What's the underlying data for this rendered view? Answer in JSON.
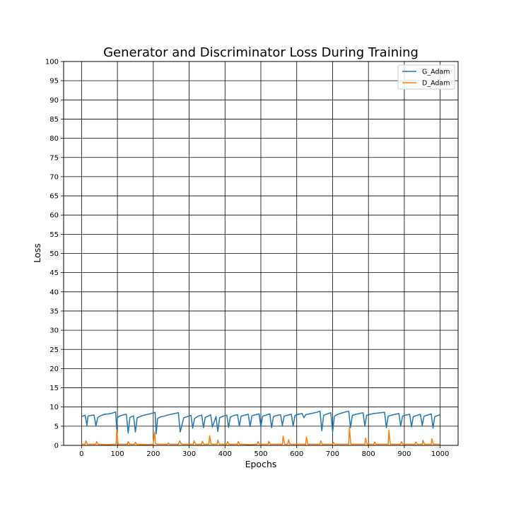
{
  "chart_data": {
    "type": "line",
    "title": "Generator and Discriminator Loss During Training",
    "xlabel": "Epochs",
    "ylabel": "Loss",
    "xlim": [
      -50,
      1050
    ],
    "ylim": [
      0,
      100
    ],
    "xticks": [
      0,
      100,
      200,
      300,
      400,
      500,
      600,
      700,
      800,
      900,
      1000
    ],
    "yticks": [
      0,
      5,
      10,
      15,
      20,
      25,
      30,
      35,
      40,
      45,
      50,
      55,
      60,
      65,
      70,
      75,
      80,
      85,
      90,
      95,
      100
    ],
    "grid": true,
    "legend_position": "top-right",
    "series": [
      {
        "name": "G_Adam",
        "color": "#1f77b4",
        "x": [
          0,
          10,
          15,
          18,
          25,
          35,
          40,
          45,
          55,
          65,
          75,
          85,
          95,
          98,
          100,
          105,
          115,
          125,
          130,
          135,
          145,
          150,
          155,
          165,
          175,
          185,
          195,
          205,
          208,
          212,
          220,
          230,
          240,
          250,
          260,
          270,
          275,
          285,
          295,
          305,
          310,
          315,
          325,
          335,
          340,
          345,
          355,
          360,
          365,
          375,
          380,
          385,
          395,
          405,
          410,
          415,
          425,
          435,
          440,
          445,
          455,
          465,
          470,
          475,
          485,
          495,
          500,
          505,
          515,
          525,
          530,
          535,
          545,
          555,
          560,
          565,
          575,
          585,
          590,
          595,
          605,
          615,
          620,
          625,
          635,
          645,
          655,
          665,
          670,
          675,
          685,
          695,
          700,
          705,
          715,
          725,
          735,
          745,
          750,
          755,
          765,
          775,
          785,
          790,
          795,
          805,
          815,
          825,
          835,
          845,
          850,
          855,
          865,
          875,
          885,
          890,
          895,
          905,
          915,
          920,
          925,
          935,
          945,
          950,
          955,
          965,
          975,
          980,
          985,
          995,
          1000
        ],
        "y": [
          7.5,
          7.9,
          5.2,
          7.6,
          7.8,
          7.9,
          5.0,
          7.3,
          7.8,
          8.1,
          8.2,
          8.4,
          8.7,
          4.2,
          7.2,
          7.6,
          7.9,
          8.1,
          3.2,
          7.3,
          7.7,
          3.5,
          7.2,
          7.6,
          7.9,
          8.1,
          8.3,
          8.6,
          3.0,
          7.0,
          7.4,
          7.6,
          7.9,
          8.1,
          8.3,
          8.5,
          3.5,
          7.2,
          7.5,
          7.8,
          4.5,
          7.0,
          7.6,
          7.9,
          4.6,
          7.3,
          7.7,
          8.0,
          4.8,
          7.5,
          3.6,
          7.2,
          7.6,
          7.9,
          4.7,
          7.4,
          7.8,
          8.0,
          5.0,
          7.6,
          7.9,
          8.1,
          4.9,
          7.7,
          8.0,
          8.2,
          4.8,
          7.6,
          7.9,
          8.2,
          4.6,
          7.5,
          7.8,
          8.0,
          5.2,
          7.6,
          7.9,
          8.1,
          5.0,
          7.8,
          8.1,
          8.3,
          7.2,
          8.0,
          8.2,
          8.4,
          8.6,
          8.9,
          3.8,
          7.8,
          8.2,
          8.5,
          3.5,
          7.6,
          8.1,
          8.4,
          8.7,
          8.9,
          4.6,
          7.8,
          8.1,
          8.3,
          8.5,
          5.0,
          7.8,
          8.1,
          8.3,
          8.4,
          8.5,
          8.6,
          4.6,
          7.6,
          7.9,
          8.1,
          8.3,
          5.0,
          7.6,
          7.9,
          8.1,
          4.8,
          7.5,
          7.8,
          8.1,
          5.2,
          7.6,
          7.9,
          8.2,
          4.5,
          7.5,
          7.8,
          8.0
        ]
      },
      {
        "name": "D_Adam",
        "color": "#ff7f0e",
        "x": [
          0,
          10,
          12,
          16,
          40,
          42,
          46,
          70,
          96,
          98,
          102,
          128,
          130,
          134,
          148,
          150,
          154,
          180,
          200,
          204,
          206,
          210,
          240,
          242,
          246,
          270,
          274,
          278,
          282,
          312,
          314,
          318,
          335,
          337,
          341,
          355,
          357,
          361,
          378,
          380,
          384,
          405,
          407,
          411,
          435,
          437,
          441,
          470,
          490,
          492,
          496,
          520,
          522,
          526,
          560,
          562,
          566,
          575,
          577,
          581,
          625,
          627,
          631,
          665,
          667,
          671,
          700,
          702,
          706,
          745,
          747,
          751,
          790,
          792,
          796,
          815,
          817,
          821,
          855,
          857,
          861,
          890,
          892,
          896,
          930,
          932,
          936,
          950,
          952,
          956,
          975,
          977,
          981,
          1000
        ],
        "y": [
          0.3,
          0.3,
          1.2,
          0.3,
          0.3,
          1.0,
          0.3,
          0.2,
          0.3,
          4.0,
          0.3,
          0.3,
          1.0,
          0.3,
          0.3,
          0.8,
          0.3,
          0.2,
          0.3,
          3.5,
          0.5,
          0.3,
          0.3,
          0.6,
          0.3,
          0.3,
          1.2,
          0.4,
          0.3,
          0.3,
          1.2,
          0.3,
          0.3,
          1.1,
          0.3,
          0.3,
          2.5,
          0.3,
          0.3,
          1.4,
          0.3,
          0.3,
          1.0,
          0.3,
          0.3,
          1.0,
          0.3,
          0.2,
          0.3,
          1.0,
          0.3,
          0.3,
          1.1,
          0.3,
          0.3,
          2.4,
          0.3,
          0.3,
          1.5,
          0.3,
          0.3,
          2.2,
          0.3,
          0.3,
          1.2,
          0.3,
          0.3,
          0.8,
          0.3,
          0.3,
          4.7,
          0.3,
          0.3,
          1.9,
          0.3,
          0.3,
          0.9,
          0.3,
          0.3,
          3.9,
          0.3,
          0.3,
          1.0,
          0.3,
          0.3,
          0.9,
          0.3,
          0.3,
          1.3,
          0.3,
          0.3,
          1.7,
          0.3,
          0.3
        ]
      }
    ]
  }
}
